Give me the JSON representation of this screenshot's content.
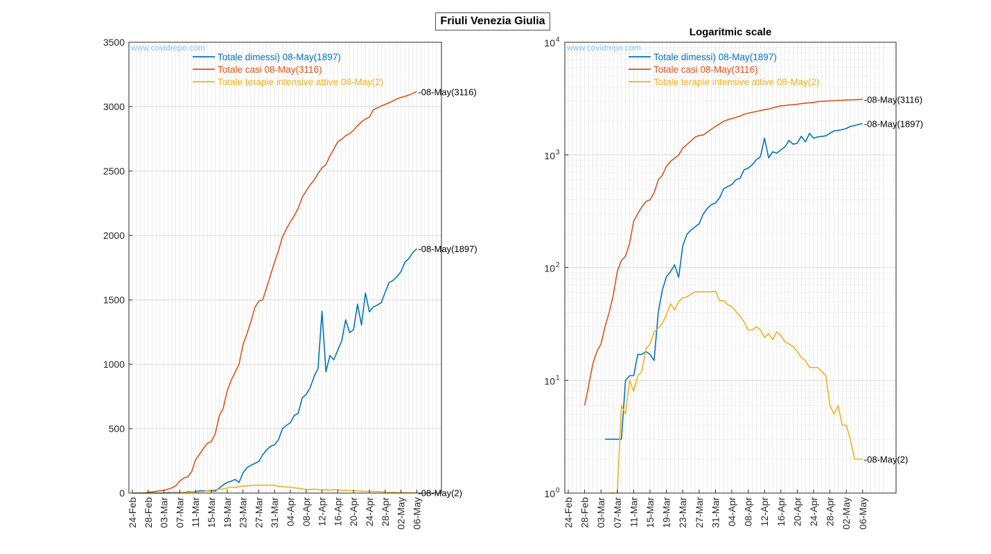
{
  "figure": {
    "suptitle": "Friuli Venezia Giulia",
    "watermark": "www.covidrepo.com"
  },
  "colors": {
    "dimessi": "#0072BD",
    "casi": "#D95319",
    "terapie": "#EDB120",
    "watermark": "#87c4ea",
    "grid": "#dcdcdc",
    "minor_grid": "#c8c8c8"
  },
  "chart_data": [
    {
      "type": "line",
      "title": "",
      "xlabel": "",
      "ylabel": "",
      "yscale": "linear",
      "ylim": [
        0,
        3500
      ],
      "yticks": [
        0,
        500,
        1000,
        1500,
        2000,
        2500,
        3000,
        3500
      ],
      "ytick_labels": [
        "0",
        "500",
        "1000",
        "1500",
        "2000",
        "2500",
        "3000",
        "3500"
      ],
      "grid": true,
      "legend": "top-center",
      "start_date": "2020-02-24",
      "x_tick_labels": [
        "24-Feb",
        "28-Feb",
        "03-Mar",
        "07-Mar",
        "11-Mar",
        "15-Mar",
        "19-Mar",
        "23-Mar",
        "27-Mar",
        "31-Mar",
        "04-Apr",
        "08-Apr",
        "12-Apr",
        "16-Apr",
        "20-Apr",
        "24-Apr",
        "28-Apr",
        "02-May",
        "06-May"
      ],
      "series": [
        {
          "key": "dimessi",
          "name": "Totale dimessi) 08-May(1897)",
          "end_label": "08-May(1897)"
        },
        {
          "key": "casi",
          "name": "Totale casi 08-May(3116)",
          "end_label": "08-May(3116)"
        },
        {
          "key": "terapie",
          "name": "Totale terapie intensive attive 08-May(2)",
          "end_label": "08-May(2)"
        }
      ]
    },
    {
      "type": "line",
      "title": "Logaritmic scale",
      "xlabel": "",
      "ylabel": "",
      "yscale": "log",
      "ylim": [
        1,
        10000
      ],
      "ytick_labels": [
        "10^0",
        "10^1",
        "10^2",
        "10^3",
        "10^4"
      ],
      "grid": true,
      "legend": "top-center",
      "x_tick_labels": [
        "24-Feb",
        "28-Feb",
        "03-Mar",
        "07-Mar",
        "11-Mar",
        "15-Mar",
        "19-Mar",
        "23-Mar",
        "27-Mar",
        "31-Mar",
        "04-Apr",
        "08-Apr",
        "12-Apr",
        "16-Apr",
        "20-Apr",
        "24-Apr",
        "28-Apr",
        "02-May",
        "06-May"
      ],
      "series": [
        {
          "key": "dimessi",
          "name": "Totale dimessi) 08-May(1897)",
          "end_label": "08-May(1897)"
        },
        {
          "key": "casi",
          "name": "Totale casi 08-May(3116)",
          "end_label": "08-May(3116)"
        },
        {
          "key": "terapie",
          "name": "Totale terapie intensive attive 08-May(2)",
          "end_label": "08-May(2)"
        }
      ]
    }
  ],
  "series_values": {
    "casi": [
      0,
      0,
      0,
      0,
      6,
      9,
      14,
      18,
      21,
      30,
      40,
      57,
      93,
      116,
      126,
      165,
      258,
      301,
      347,
      386,
      400,
      462,
      600,
      658,
      792,
      874,
      936,
      1000,
      1150,
      1236,
      1329,
      1440,
      1490,
      1500,
      1595,
      1693,
      1793,
      1883,
      1990,
      2050,
      2105,
      2155,
      2213,
      2295,
      2346,
      2392,
      2430,
      2480,
      2525,
      2549,
      2618,
      2671,
      2727,
      2746,
      2775,
      2790,
      2816,
      2852,
      2882,
      2903,
      2918,
      2975,
      2990,
      3006,
      3018,
      3030,
      3045,
      3061,
      3072,
      3080,
      3090,
      3103,
      3116
    ],
    "dimessi": [
      0,
      0,
      0,
      0,
      0,
      0,
      0,
      0,
      0,
      3,
      3,
      3,
      3,
      3,
      10,
      11,
      11,
      17,
      17,
      18,
      17,
      15,
      40,
      63,
      83,
      92,
      106,
      82,
      156,
      197,
      215,
      230,
      245,
      298,
      335,
      363,
      375,
      415,
      500,
      525,
      546,
      602,
      620,
      739,
      765,
      818,
      904,
      966,
      1412,
      942,
      1068,
      1035,
      1109,
      1181,
      1345,
      1245,
      1269,
      1467,
      1305,
      1554,
      1407,
      1445,
      1459,
      1478,
      1559,
      1635,
      1651,
      1680,
      1719,
      1793,
      1821,
      1867,
      1897
    ],
    "terapie": [
      0,
      0,
      0,
      0,
      0,
      0,
      0,
      0,
      0,
      0,
      1,
      1,
      1,
      6,
      5,
      10,
      8,
      11,
      12,
      19,
      21,
      27,
      29,
      32,
      38,
      48,
      42,
      50,
      54,
      55,
      58,
      61,
      61,
      61,
      61,
      61,
      62,
      51,
      51,
      47,
      45,
      41,
      37,
      33,
      28,
      28,
      30,
      28,
      24,
      26,
      23,
      27,
      25,
      22,
      21,
      20,
      18,
      16,
      15,
      13,
      13,
      13,
      12,
      11,
      6,
      5,
      6,
      4,
      4,
      3,
      2,
      2,
      2
    ]
  }
}
